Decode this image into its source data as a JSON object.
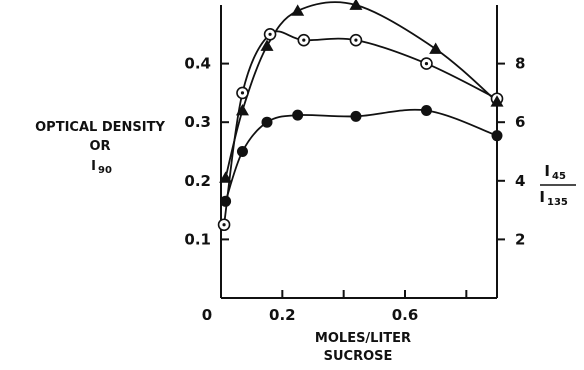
{
  "chart_data": {
    "type": "line",
    "title": "",
    "xlabel": "MOLES/LITER",
    "xlabel_line2": "SUCROSE",
    "ylabel_left": {
      "line1": "OPTICAL DENSITY",
      "line2": "OR",
      "line3": "I",
      "line3_sub": "90"
    },
    "ylabel_right": {
      "numerator": "I",
      "numerator_sub": "45",
      "denominator": "I",
      "denominator_sub": "135"
    },
    "xlim": [
      0,
      0.9
    ],
    "ylim_left": [
      0,
      0.5
    ],
    "ylim_right": [
      0,
      10
    ],
    "x_ticks": [
      {
        "value": 0,
        "label": "0"
      },
      {
        "value": 0.2,
        "label": "0.2"
      },
      {
        "value": 0.4,
        "label": ""
      },
      {
        "value": 0.6,
        "label": "0.6"
      },
      {
        "value": 0.8,
        "label": ""
      }
    ],
    "y_left_ticks": [
      {
        "value": 0.1,
        "label": "0.1"
      },
      {
        "value": 0.2,
        "label": "0.2"
      },
      {
        "value": 0.3,
        "label": "0.3"
      },
      {
        "value": 0.4,
        "label": "0.4"
      }
    ],
    "y_right_ticks": [
      {
        "value": 2,
        "label": "2"
      },
      {
        "value": 4,
        "label": "4"
      },
      {
        "value": 6,
        "label": "6"
      },
      {
        "value": 8,
        "label": "8"
      }
    ],
    "grid": false,
    "legend": "none",
    "series": [
      {
        "marker": "filled-circle",
        "axis": "left",
        "x": [
          0.015,
          0.07,
          0.15,
          0.25,
          0.44,
          0.67,
          0.9
        ],
        "y": [
          0.165,
          0.25,
          0.3,
          0.312,
          0.31,
          0.32,
          0.277
        ]
      },
      {
        "marker": "open-circle",
        "axis": "left",
        "x": [
          0.01,
          0.07,
          0.16,
          0.27,
          0.44,
          0.67,
          0.9
        ],
        "y": [
          0.125,
          0.35,
          0.45,
          0.44,
          0.44,
          0.4,
          0.34
        ]
      },
      {
        "marker": "filled-triangle",
        "axis": "left",
        "x": [
          0.015,
          0.07,
          0.15,
          0.25,
          0.44,
          0.7,
          0.9
        ],
        "y": [
          0.205,
          0.32,
          0.43,
          0.49,
          0.5,
          0.425,
          0.335
        ]
      }
    ]
  }
}
